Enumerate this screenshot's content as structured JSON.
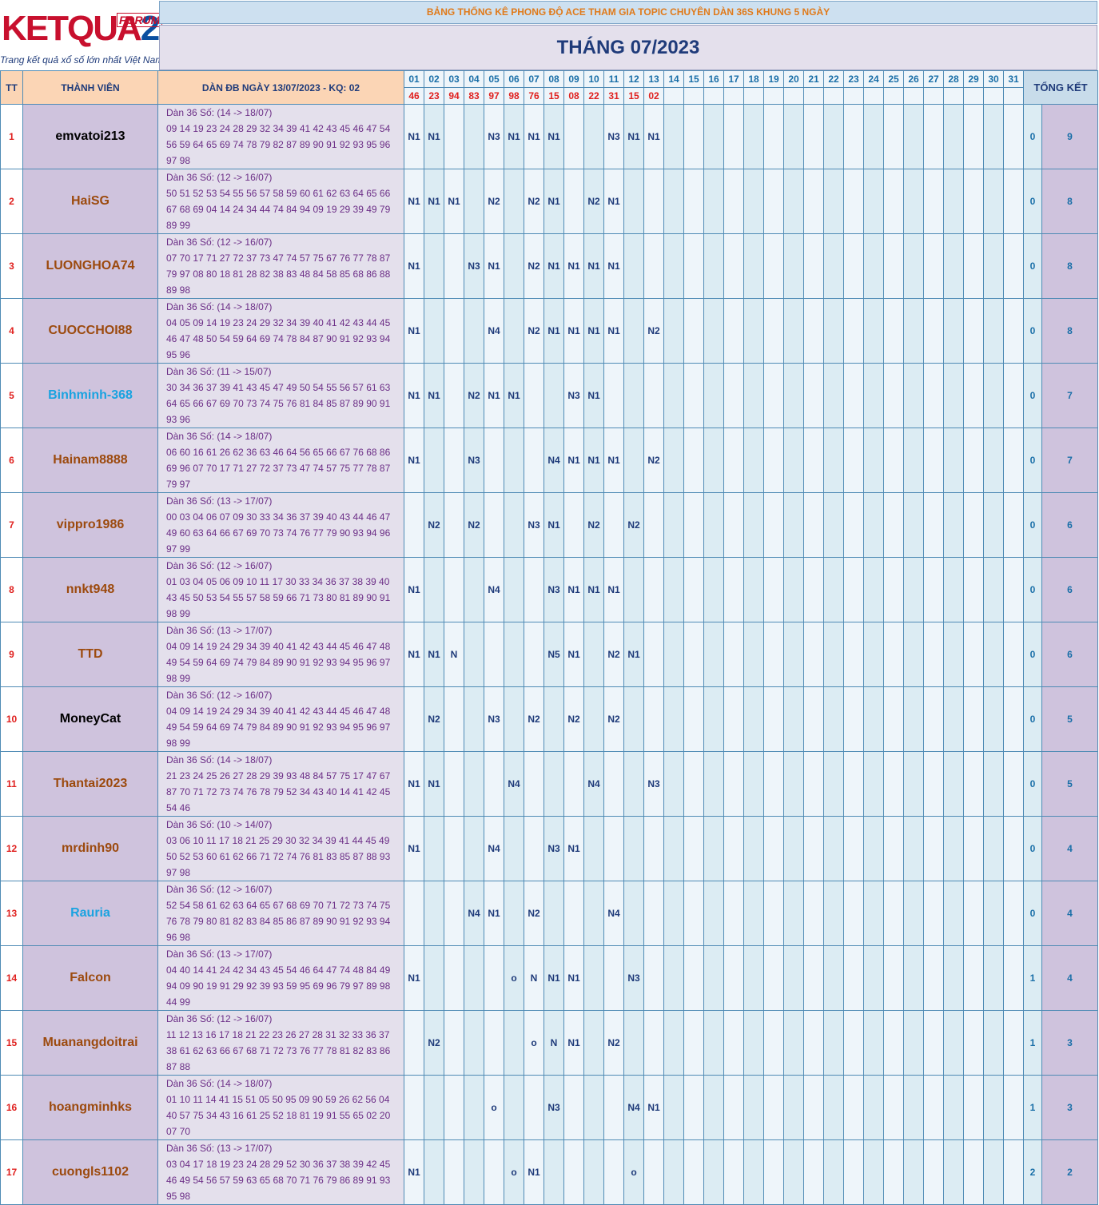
{
  "logo": {
    "brand_k": "KETQUA",
    "brand_2": "2",
    "forum": "FORUM",
    "slogan": "Trang kết quả xổ số lớn nhất Việt Nam"
  },
  "banner": "BẢNG THỐNG KÊ PHONG ĐỘ ACE THAM GIA TOPIC CHUYÊN DÀN 36S KHUNG 5 NGÀY",
  "month_title": "THÁNG 07/2023",
  "headers": {
    "tt": "TT",
    "member": "THÀNH VIÊN",
    "dan": "DÀN ĐB NGÀY 13/07/2023 - KQ: 02",
    "total": "TỔNG KẾT"
  },
  "days": [
    "01",
    "02",
    "03",
    "04",
    "05",
    "06",
    "07",
    "08",
    "09",
    "10",
    "11",
    "12",
    "13",
    "14",
    "15",
    "16",
    "17",
    "18",
    "19",
    "20",
    "21",
    "22",
    "23",
    "24",
    "25",
    "26",
    "27",
    "28",
    "29",
    "30",
    "31"
  ],
  "results": [
    "46",
    "23",
    "94",
    "83",
    "97",
    "98",
    "76",
    "15",
    "08",
    "22",
    "31",
    "15",
    "02",
    "",
    "",
    "",
    "",
    "",
    "",
    "",
    "",
    "",
    "",
    "",
    "",
    "",
    "",
    "",
    "",
    "",
    ""
  ],
  "members": [
    {
      "tt": "1",
      "name": "emvatoi213",
      "color": "#000000",
      "dan_title": "Dàn 36 Số: (14 -> 18/07)",
      "dan_l1": "09 14 19 23 24 28 29 32 34 39 41 42 43 45 46 47 54",
      "dan_l2": "56 59 64 65 69 74 78 79 82 87 89 90 91 92 93 95 96",
      "dan_l3": "97 98",
      "marks": [
        "N1",
        "N1",
        "",
        "",
        "N3",
        "N1",
        "N1",
        "N1",
        "",
        "",
        "N3",
        "N1",
        "N1"
      ],
      "t1": "0",
      "t2": "9"
    },
    {
      "tt": "2",
      "name": "HaiSG",
      "color": "#9c4a0e",
      "dan_title": "Dàn 36 Số: (12 -> 16/07)",
      "dan_l1": "50 51 52 53 54 55 56 57 58 59 60 61 62 63 64 65 66",
      "dan_l2": "67 68 69 04 14 24 34 44 74 84 94 09 19 29 39 49 79",
      "dan_l3": "89 99",
      "marks": [
        "N1",
        "N1",
        "N1",
        "",
        "N2",
        "",
        "N2",
        "N1",
        "",
        "N2",
        "N1",
        "",
        ""
      ],
      "t1": "0",
      "t2": "8"
    },
    {
      "tt": "3",
      "name": "LUONGHOA74",
      "color": "#9c4a0e",
      "dan_title": "Dàn 36 Số: (12 -> 16/07)",
      "dan_l1": "07 70 17 71 27 72 37 73 47 74 57 75 67 76 77 78 87",
      "dan_l2": "79 97 08 80 18 81 28 82 38 83 48 84 58 85 68 86 88",
      "dan_l3": "89 98",
      "marks": [
        "N1",
        "",
        "",
        "N3",
        "N1",
        "",
        "N2",
        "N1",
        "N1",
        "N1",
        "N1",
        "",
        ""
      ],
      "t1": "0",
      "t2": "8"
    },
    {
      "tt": "4",
      "name": "CUOCCHOI88",
      "color": "#9c4a0e",
      "dan_title": "Dàn 36 Số: (14 -> 18/07)",
      "dan_l1": "04 05 09 14 19 23 24 29 32 34 39 40 41 42 43 44 45",
      "dan_l2": "46 47 48 50 54 59 64 69 74 78 84 87 90 91 92 93 94",
      "dan_l3": "95 96",
      "marks": [
        "N1",
        "",
        "",
        "",
        "N4",
        "",
        "N2",
        "N1",
        "N1",
        "N1",
        "N1",
        "",
        "N2"
      ],
      "t1": "0",
      "t2": "8"
    },
    {
      "tt": "5",
      "name": "Binhminh-368",
      "color": "#1aa3e0",
      "dan_title": "Dàn 36 Số: (11 -> 15/07)",
      "dan_l1": "30 34 36 37 39 41 43 45 47 49 50 54 55 56 57 61 63",
      "dan_l2": "64 65 66 67 69 70 73 74 75 76 81 84 85 87 89 90 91",
      "dan_l3": "93 96",
      "marks": [
        "N1",
        "N1",
        "",
        "N2",
        "N1",
        "N1",
        "",
        "",
        "N3",
        "N1",
        "",
        "",
        ""
      ],
      "t1": "0",
      "t2": "7"
    },
    {
      "tt": "6",
      "name": "Hainam8888",
      "color": "#9c4a0e",
      "dan_title": "Dàn 36 Số: (14 -> 18/07)",
      "dan_l1": "06 60 16 61 26 62 36 63 46 64 56 65 66 67 76 68 86",
      "dan_l2": "69 96 07 70 17 71 27 72 37 73 47 74 57 75 77 78 87",
      "dan_l3": "79 97",
      "marks": [
        "N1",
        "",
        "",
        "N3",
        "",
        "",
        "",
        "N4",
        "N1",
        "N1",
        "N1",
        "",
        "N2"
      ],
      "t1": "0",
      "t2": "7"
    },
    {
      "tt": "7",
      "name": "vippro1986",
      "color": "#9c4a0e",
      "dan_title": "Dàn 36 Số: (13 -> 17/07)",
      "dan_l1": "00 03 04 06 07 09 30 33 34 36 37 39 40 43 44 46 47",
      "dan_l2": "49 60 63 64 66 67 69 70 73 74 76 77 79 90 93 94 96",
      "dan_l3": "97 99",
      "marks": [
        "",
        "N2",
        "",
        "N2",
        "",
        "",
        "N3",
        "N1",
        "",
        "N2",
        "",
        "N2",
        ""
      ],
      "t1": "0",
      "t2": "6"
    },
    {
      "tt": "8",
      "name": "nnkt948",
      "color": "#9c4a0e",
      "dan_title": "Dàn 36 Số: (12 -> 16/07)",
      "dan_l1": "01 03 04 05 06 09 10 11 17 30 33 34 36 37 38 39 40",
      "dan_l2": "43 45 50 53 54 55 57 58 59 66 71 73 80 81 89 90 91",
      "dan_l3": "98 99",
      "marks": [
        "N1",
        "",
        "",
        "",
        "N4",
        "",
        "",
        "N3",
        "N1",
        "N1",
        "N1",
        "",
        ""
      ],
      "t1": "0",
      "t2": "6"
    },
    {
      "tt": "9",
      "name": "TTD",
      "color": "#9c4a0e",
      "dan_title": "Dàn 36 Số: (13 -> 17/07)",
      "dan_l1": "04 09 14 19 24 29 34 39 40 41 42 43 44 45 46 47 48",
      "dan_l2": "49 54 59 64 69 74 79 84 89 90 91 92 93 94 95 96 97",
      "dan_l3": "98 99",
      "marks": [
        "N1",
        "N1",
        "N",
        "",
        "",
        "",
        "",
        "N5",
        "N1",
        "",
        "N2",
        "N1",
        ""
      ],
      "t1": "0",
      "t2": "6"
    },
    {
      "tt": "10",
      "name": "MoneyCat",
      "color": "#000000",
      "dan_title": "Dàn 36 Số: (12 -> 16/07)",
      "dan_l1": "04 09 14 19 24 29 34 39 40 41 42 43 44 45 46 47 48",
      "dan_l2": "49 54 59 64 69 74 79 84 89 90 91 92 93 94 95 96 97",
      "dan_l3": "98 99",
      "marks": [
        "",
        "N2",
        "",
        "",
        "N3",
        "",
        "N2",
        "",
        "N2",
        "",
        "N2",
        "",
        ""
      ],
      "t1": "0",
      "t2": "5"
    },
    {
      "tt": "11",
      "name": "Thantai2023",
      "color": "#9c4a0e",
      "dan_title": "Dàn 36 Số: (14 -> 18/07)",
      "dan_l1": "21 23 24 25 26 27 28 29 39 93 48 84 57 75 17 47 67",
      "dan_l2": "87 70 71 72 73 74 76 78 79 52 34 43 40 14 41 42 45",
      "dan_l3": "54 46",
      "marks": [
        "N1",
        "N1",
        "",
        "",
        "",
        "N4",
        "",
        "",
        "",
        "N4",
        "",
        "",
        "N3"
      ],
      "t1": "0",
      "t2": "5"
    },
    {
      "tt": "12",
      "name": "mrdinh90",
      "color": "#9c4a0e",
      "dan_title": "Dàn 36 Số: (10 -> 14/07)",
      "dan_l1": "03 06 10 11 17 18 21 25 29 30 32 34 39 41 44 45 49",
      "dan_l2": "50 52 53 60 61 62 66 71 72 74 76 81 83 85 87 88 93",
      "dan_l3": "97 98",
      "marks": [
        "N1",
        "",
        "",
        "",
        "N4",
        "",
        "",
        "N3",
        "N1",
        "",
        "",
        "",
        ""
      ],
      "t1": "0",
      "t2": "4"
    },
    {
      "tt": "13",
      "name": "Rauria",
      "color": "#1aa3e0",
      "dan_title": "Dàn 36 Số: (12 -> 16/07)",
      "dan_l1": "52 54 58 61 62 63 64 65 67 68 69 70 71 72 73 74 75",
      "dan_l2": "76 78 79 80 81 82 83 84 85 86 87 89 90 91 92 93 94",
      "dan_l3": "96 98",
      "marks": [
        "",
        "",
        "",
        "N4",
        "N1",
        "",
        "N2",
        "",
        "",
        "",
        "N4",
        "",
        ""
      ],
      "t1": "0",
      "t2": "4"
    },
    {
      "tt": "14",
      "name": "Falcon",
      "color": "#9c4a0e",
      "dan_title": "Dàn 36 Số: (13 -> 17/07)",
      "dan_l1": "04 40 14 41 24 42 34 43 45 54 46 64 47 74 48 84 49",
      "dan_l2": "94 09 90 19 91 29 92 39 93 59 95 69 96 79 97 89 98",
      "dan_l3": "44 99",
      "marks": [
        "N1",
        "",
        "",
        "",
        "",
        "o",
        "N",
        "N1",
        "N1",
        "",
        "",
        "N3",
        ""
      ],
      "t1": "1",
      "t2": "4"
    },
    {
      "tt": "15",
      "name": "Muanangdoitrai",
      "color": "#9c4a0e",
      "dan_title": "Dàn 36 Số: (12 -> 16/07)",
      "dan_l1": "11 12 13 16 17 18 21 22 23 26 27 28 31 32 33 36 37",
      "dan_l2": "38 61 62 63 66 67 68 71 72 73 76 77 78 81 82 83 86",
      "dan_l3": "87 88",
      "marks": [
        "",
        "N2",
        "",
        "",
        "",
        "",
        "o",
        "N",
        "N1",
        "",
        "N2",
        "",
        ""
      ],
      "t1": "1",
      "t2": "3"
    },
    {
      "tt": "16",
      "name": "hoangminhks",
      "color": "#9c4a0e",
      "dan_title": "Dàn 36 Số: (14 -> 18/07)",
      "dan_l1": "01 10 11 14 41 15 51 05 50 95 09 90 59 26 62 56 04",
      "dan_l2": "40 57 75 34 43 16 61 25 52 18 81 19 91 55 65 02 20",
      "dan_l3": "07 70",
      "marks": [
        "",
        "",
        "",
        "",
        "o",
        "",
        "",
        "N3",
        "",
        "",
        "",
        "N4",
        "N1"
      ],
      "t1": "1",
      "t2": "3"
    },
    {
      "tt": "17",
      "name": "cuongls1102",
      "color": "#9c4a0e",
      "dan_title": "Dàn 36 Số: (13 -> 17/07)",
      "dan_l1": "03 04 17 18 19 23 24 28 29 52 30 36 37 38 39 42 45",
      "dan_l2": "46 49 54 56 57 59 63 65 68 70 71 76 79 86 89 91 93",
      "dan_l3": "95 98",
      "marks": [
        "N1",
        "",
        "",
        "",
        "",
        "o",
        "N1",
        "",
        "",
        "",
        "",
        "o",
        ""
      ],
      "t1": "2",
      "t2": "2"
    }
  ]
}
